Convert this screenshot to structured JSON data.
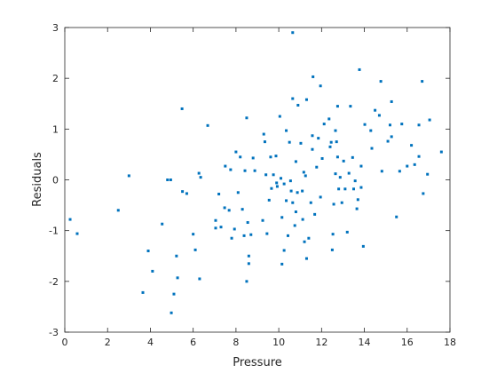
{
  "chart_data": {
    "type": "scatter",
    "xlabel": "Pressure",
    "ylabel": "Residuals",
    "xlim": [
      0,
      18
    ],
    "ylim": [
      -3,
      3
    ],
    "xticks": [
      0,
      2,
      4,
      6,
      8,
      10,
      12,
      14,
      16,
      18
    ],
    "yticks": [
      -3,
      -2,
      -1,
      0,
      1,
      2,
      3
    ],
    "color": "#0072bd",
    "x": [
      0.25,
      0.58,
      2.5,
      3.0,
      3.65,
      3.9,
      4.1,
      4.55,
      4.8,
      4.95,
      4.98,
      5.1,
      5.22,
      5.27,
      5.48,
      5.5,
      5.7,
      6.0,
      6.1,
      6.27,
      6.35,
      6.3,
      6.68,
      7.05,
      7.05,
      7.2,
      7.3,
      7.5,
      7.47,
      7.68,
      7.75,
      7.8,
      7.93,
      8.0,
      8.1,
      8.2,
      8.3,
      8.38,
      8.42,
      8.5,
      8.5,
      8.55,
      8.6,
      8.6,
      8.7,
      8.8,
      8.88,
      9.25,
      9.3,
      9.35,
      9.4,
      9.45,
      9.55,
      9.62,
      9.66,
      9.75,
      9.87,
      9.9,
      9.93,
      10.05,
      10.1,
      10.15,
      10.15,
      10.25,
      10.25,
      10.35,
      10.35,
      10.43,
      10.5,
      10.55,
      10.58,
      10.65,
      10.65,
      10.65,
      10.75,
      10.8,
      10.8,
      10.87,
      10.9,
      11.03,
      11.1,
      11.12,
      11.17,
      11.2,
      11.25,
      11.3,
      11.3,
      11.4,
      11.5,
      11.57,
      11.57,
      11.6,
      11.68,
      11.77,
      11.85,
      11.95,
      11.95,
      12.03,
      12.12,
      12.35,
      12.4,
      12.45,
      12.5,
      12.53,
      12.57,
      12.65,
      12.65,
      12.7,
      12.75,
      12.75,
      12.8,
      12.87,
      12.95,
      13.03,
      13.1,
      13.2,
      13.28,
      13.35,
      13.45,
      13.5,
      13.57,
      13.65,
      13.7,
      13.77,
      13.85,
      13.85,
      13.95,
      14.02,
      14.3,
      14.35,
      14.5,
      14.7,
      14.77,
      14.82,
      15.1,
      15.2,
      15.27,
      15.27,
      15.5,
      15.65,
      15.75,
      16.0,
      16.2,
      16.35,
      16.55,
      16.55,
      16.7,
      16.75,
      16.95,
      17.05,
      17.6
    ],
    "y": [
      -0.78,
      -1.06,
      -0.6,
      0.08,
      -2.22,
      -1.4,
      -1.8,
      -0.87,
      0,
      0,
      -2.62,
      -2.25,
      -1.5,
      -1.93,
      1.4,
      -0.23,
      -0.27,
      -1.07,
      -1.38,
      0.13,
      0.05,
      -1.95,
      1.07,
      -0.8,
      -0.95,
      -0.28,
      -0.93,
      0.27,
      -0.55,
      -0.6,
      0.2,
      -1.15,
      -0.97,
      0.55,
      -0.25,
      0.45,
      -0.58,
      -1.1,
      0.18,
      1.22,
      -2.0,
      -0.84,
      -1.5,
      -1.65,
      -1.08,
      0.43,
      0.18,
      -0.8,
      0.9,
      0.75,
      0.1,
      -1.06,
      -0.4,
      0.45,
      -0.17,
      0.1,
      0.47,
      -0.06,
      -0.13,
      1.25,
      0.03,
      -1.66,
      -0.74,
      -0.08,
      -1.39,
      0.97,
      -0.41,
      -1.1,
      0.74,
      -0.02,
      -0.22,
      2.9,
      -0.45,
      1.6,
      -0.9,
      -0.63,
      0.36,
      -0.25,
      1.47,
      0.72,
      -0.22,
      -0.78,
      0.15,
      -1.22,
      0.08,
      -1.55,
      1.58,
      -1.15,
      -0.45,
      0.6,
      0.87,
      2.03,
      -0.68,
      0.25,
      0.82,
      1.85,
      -0.34,
      0.42,
      1.1,
      1.2,
      0.65,
      0.74,
      -1.38,
      -1.07,
      -0.48,
      0.12,
      0.97,
      0.75,
      0.45,
      1.45,
      -0.18,
      0.05,
      -0.45,
      0.37,
      -0.18,
      -1.03,
      0.13,
      1.45,
      0.44,
      -0.18,
      -0.02,
      -0.57,
      -0.39,
      2.17,
      0.27,
      -0.15,
      -1.31,
      1.09,
      0.97,
      0.62,
      1.37,
      1.27,
      1.94,
      0.17,
      0.76,
      1.08,
      1.54,
      0.85,
      -0.73,
      0.17,
      1.1,
      0.27,
      0.68,
      0.3,
      0.46,
      1.08,
      1.94,
      -0.27,
      0.11,
      1.18,
      0.55
    ]
  }
}
